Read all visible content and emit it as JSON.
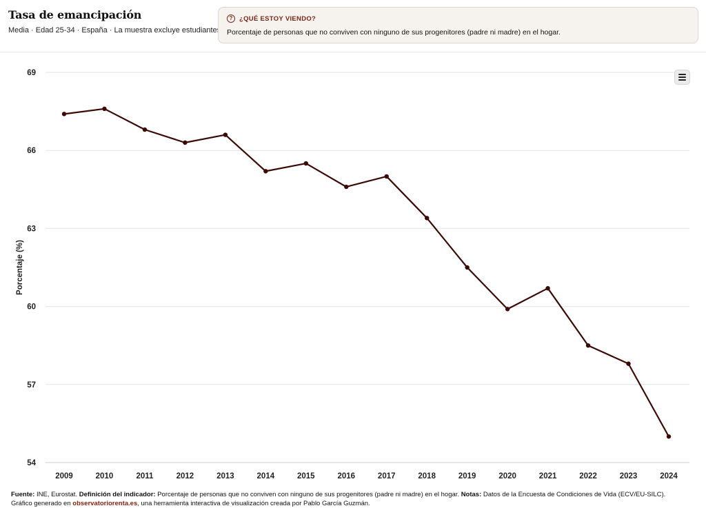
{
  "header": {
    "title": "Tasa de emancipación",
    "subtitle": "Media · Edad 25-34 · España · La muestra excluye estudiantes"
  },
  "info": {
    "icon": "question-circle-icon",
    "label": "¿QUÉ ESTOY VIENDO?",
    "text": "Porcentaje de personas que no conviven con ninguno de sus progenitores (padre ni madre) en el hogar."
  },
  "menu": {
    "icon": "hamburger-menu-icon"
  },
  "chart_data": {
    "type": "line",
    "title": "Tasa de emancipación",
    "xlabel": "",
    "ylabel": "Porcentaje (%)",
    "ylim": [
      54,
      69
    ],
    "yticks": [
      54,
      57,
      60,
      63,
      66,
      69
    ],
    "grid": true,
    "categories": [
      "2009",
      "2010",
      "2011",
      "2012",
      "2013",
      "2014",
      "2015",
      "2016",
      "2017",
      "2018",
      "2019",
      "2020",
      "2021",
      "2022",
      "2023",
      "2024"
    ],
    "series": [
      {
        "name": "Tasa de emancipación",
        "color": "#3b0a04",
        "values": [
          67.4,
          67.6,
          66.8,
          66.3,
          66.6,
          65.2,
          65.5,
          64.6,
          65.0,
          63.4,
          61.5,
          59.9,
          60.7,
          58.5,
          57.8,
          55.0
        ]
      }
    ]
  },
  "footer": {
    "fuente_label": "Fuente:",
    "fuente_value": " INE, Eurostat. ",
    "def_label": "Definición del indicador:",
    "def_value": " Porcentaje de personas que no conviven con ninguno de sus progenitores (padre ni madre) en el hogar. ",
    "notas_label": "Notas:",
    "notas_value": " Datos de la Encuesta de Condiciones de Vida (ECV/EU-SILC).",
    "generated_prefix": "Gráfico generado en ",
    "generated_link": "observatoriorenta.es",
    "generated_suffix": ", una herramienta interactiva de visualización creada por Pablo García Guzmán."
  }
}
